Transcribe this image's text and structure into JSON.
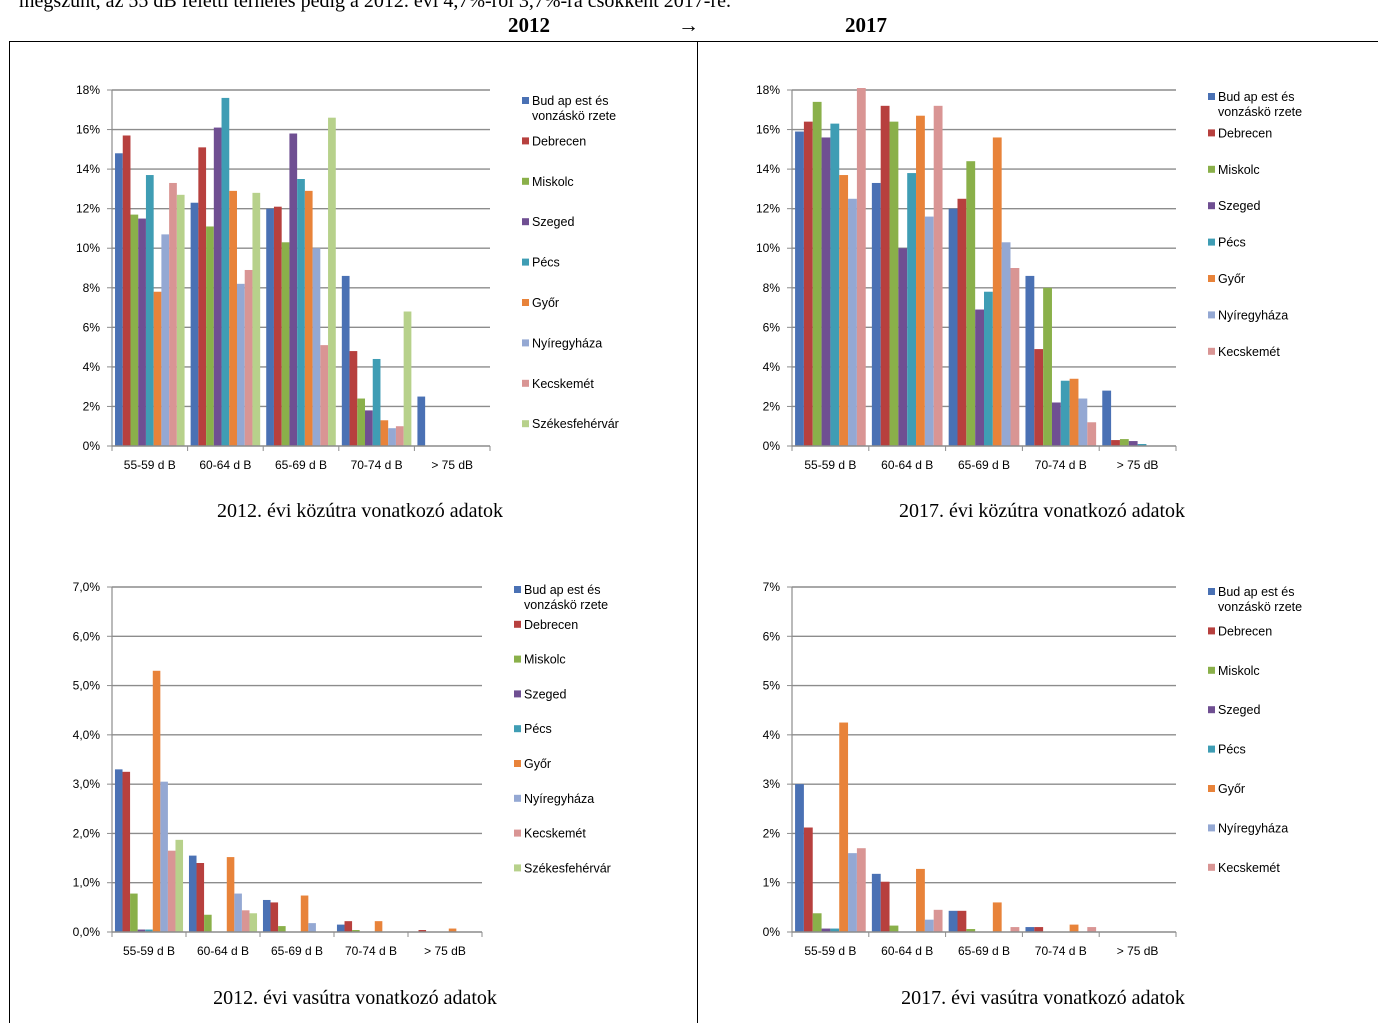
{
  "header": {
    "intro_line": "megszűnt, az 55 dB feletti terhelés pedig a 2012. évi 4,7%-ról 3,7%-ra csökkent 2017-re.",
    "year_left": "2012",
    "arrow": "→",
    "year_right": "2017"
  },
  "colors": {
    "Budapest": "#4a71b4",
    "Debrecen": "#b7403e",
    "Miskolc": "#8ab04a",
    "Szeged": "#6f4f92",
    "Pecs": "#3f9db4",
    "Gyor": "#e8833a",
    "Nyiregyhaza": "#94a8d3",
    "Kecskemet": "#d99594",
    "Szekesfehervar": "#b7d18b"
  },
  "chart_data": [
    {
      "type": "bar",
      "caption": "2012. évi közútra vonatkozó adatok",
      "categories": [
        "55-59 d B",
        "60-64 d B",
        "65-69 d B",
        "70-74 d B",
        "> 75 dB"
      ],
      "yticks": [
        "0%",
        "2%",
        "4%",
        "6%",
        "8%",
        "10%",
        "12%",
        "14%",
        "16%",
        "18%"
      ],
      "ylim": [
        0,
        18
      ],
      "series": [
        {
          "name": "Bud ap est és vonzáskö rzete",
          "color": "#4a71b4",
          "values": [
            14.8,
            12.3,
            12.0,
            8.6,
            2.5
          ]
        },
        {
          "name": "Debrecen",
          "color": "#b7403e",
          "values": [
            15.7,
            15.1,
            12.1,
            4.8,
            0
          ]
        },
        {
          "name": "Miskolc",
          "color": "#8ab04a",
          "values": [
            11.7,
            11.1,
            10.3,
            2.4,
            0
          ]
        },
        {
          "name": "Szeged",
          "color": "#6f4f92",
          "values": [
            11.5,
            16.1,
            15.8,
            1.8,
            0
          ]
        },
        {
          "name": "Pécs",
          "color": "#3f9db4",
          "values": [
            13.7,
            17.6,
            13.5,
            4.4,
            0
          ]
        },
        {
          "name": "Győr",
          "color": "#e8833a",
          "values": [
            7.8,
            12.9,
            12.9,
            1.3,
            0
          ]
        },
        {
          "name": "Nyíregyháza",
          "color": "#94a8d3",
          "values": [
            10.7,
            8.2,
            10.0,
            0.9,
            0
          ]
        },
        {
          "name": "Kecskemét",
          "color": "#d99594",
          "values": [
            13.3,
            8.9,
            5.1,
            1.0,
            0
          ]
        },
        {
          "name": "Székesfehérvár",
          "color": "#b7d18b",
          "values": [
            12.7,
            12.8,
            16.6,
            6.8,
            0
          ]
        }
      ]
    },
    {
      "type": "bar",
      "caption": "2017. évi közútra vonatkozó adatok",
      "categories": [
        "55-59 d B",
        "60-64 d B",
        "65-69 d B",
        "70-74 d B",
        "> 75 dB"
      ],
      "yticks": [
        "0%",
        "2%",
        "4%",
        "6%",
        "8%",
        "10%",
        "12%",
        "14%",
        "16%",
        "18%"
      ],
      "ylim": [
        0,
        18
      ],
      "series": [
        {
          "name": "Bud ap est és vonzáskö rzete",
          "color": "#4a71b4",
          "values": [
            15.9,
            13.3,
            12.0,
            8.6,
            2.8
          ]
        },
        {
          "name": "Debrecen",
          "color": "#b7403e",
          "values": [
            16.4,
            17.2,
            12.5,
            4.9,
            0.3
          ]
        },
        {
          "name": "Miskolc",
          "color": "#8ab04a",
          "values": [
            17.4,
            16.4,
            14.4,
            8.0,
            0.35
          ]
        },
        {
          "name": "Szeged",
          "color": "#6f4f92",
          "values": [
            15.6,
            10.0,
            6.9,
            2.2,
            0.25
          ]
        },
        {
          "name": "Pécs",
          "color": "#3f9db4",
          "values": [
            16.3,
            13.8,
            7.8,
            3.3,
            0.1
          ]
        },
        {
          "name": "Győr",
          "color": "#e8833a",
          "values": [
            13.7,
            16.7,
            15.6,
            3.4,
            0
          ]
        },
        {
          "name": "Nyíregyháza",
          "color": "#94a8d3",
          "values": [
            12.5,
            11.6,
            10.3,
            2.4,
            0
          ]
        },
        {
          "name": "Kecskemét",
          "color": "#d99594",
          "values": [
            18.1,
            17.2,
            9.0,
            1.2,
            0
          ]
        }
      ]
    },
    {
      "type": "bar",
      "caption": "2012. évi vasútra vonatkozó adatok",
      "categories": [
        "55-59 d B",
        "60-64 d B",
        "65-69 d B",
        "70-74 d B",
        "> 75 dB"
      ],
      "yticks": [
        "0,0%",
        "1,0%",
        "2,0%",
        "3,0%",
        "4,0%",
        "5,0%",
        "6,0%",
        "7,0%"
      ],
      "ylim": [
        0,
        7
      ],
      "series": [
        {
          "name": "Bud ap est és vonzáskö rzete",
          "color": "#4a71b4",
          "values": [
            3.3,
            1.55,
            0.65,
            0.15,
            0
          ]
        },
        {
          "name": "Debrecen",
          "color": "#b7403e",
          "values": [
            3.25,
            1.4,
            0.6,
            0.22,
            0.04
          ]
        },
        {
          "name": "Miskolc",
          "color": "#8ab04a",
          "values": [
            0.78,
            0.35,
            0.12,
            0.04,
            0
          ]
        },
        {
          "name": "Szeged",
          "color": "#6f4f92",
          "values": [
            0.05,
            0,
            0,
            0,
            0
          ]
        },
        {
          "name": "Pécs",
          "color": "#3f9db4",
          "values": [
            0.05,
            0,
            0,
            0,
            0
          ]
        },
        {
          "name": "Győr",
          "color": "#e8833a",
          "values": [
            5.3,
            1.52,
            0.74,
            0.22,
            0.07
          ]
        },
        {
          "name": "Nyíregyháza",
          "color": "#94a8d3",
          "values": [
            3.05,
            0.78,
            0.18,
            0,
            0
          ]
        },
        {
          "name": "Kecskemét",
          "color": "#d99594",
          "values": [
            1.65,
            0.44,
            0,
            0,
            0
          ]
        },
        {
          "name": "Székesfehérvár",
          "color": "#b7d18b",
          "values": [
            1.87,
            0.38,
            0,
            0,
            0
          ]
        }
      ]
    },
    {
      "type": "bar",
      "caption": "2017. évi vasútra vonatkozó adatok",
      "categories": [
        "55-59 d B",
        "60-64 d B",
        "65-69 d B",
        "70-74 d B",
        "> 75 dB"
      ],
      "yticks": [
        "0%",
        "1%",
        "2%",
        "3%",
        "4%",
        "5%",
        "6%",
        "7%"
      ],
      "ylim": [
        0,
        7
      ],
      "series": [
        {
          "name": "Bud ap est és vonzáskö rzete",
          "color": "#4a71b4",
          "values": [
            3.0,
            1.18,
            0.43,
            0.1,
            0
          ]
        },
        {
          "name": "Debrecen",
          "color": "#b7403e",
          "values": [
            2.12,
            1.02,
            0.43,
            0.1,
            0
          ]
        },
        {
          "name": "Miskolc",
          "color": "#8ab04a",
          "values": [
            0.38,
            0.13,
            0.06,
            0,
            0
          ]
        },
        {
          "name": "Szeged",
          "color": "#6f4f92",
          "values": [
            0.07,
            0,
            0,
            0,
            0
          ]
        },
        {
          "name": "Pécs",
          "color": "#3f9db4",
          "values": [
            0.07,
            0,
            0,
            0,
            0
          ]
        },
        {
          "name": "Győr",
          "color": "#e8833a",
          "values": [
            4.25,
            1.28,
            0.6,
            0.15,
            0
          ]
        },
        {
          "name": "Nyíregyháza",
          "color": "#94a8d3",
          "values": [
            1.6,
            0.25,
            0,
            0,
            0
          ]
        },
        {
          "name": "Kecskemét",
          "color": "#d99594",
          "values": [
            1.7,
            0.45,
            0.1,
            0.1,
            0
          ]
        }
      ]
    }
  ]
}
